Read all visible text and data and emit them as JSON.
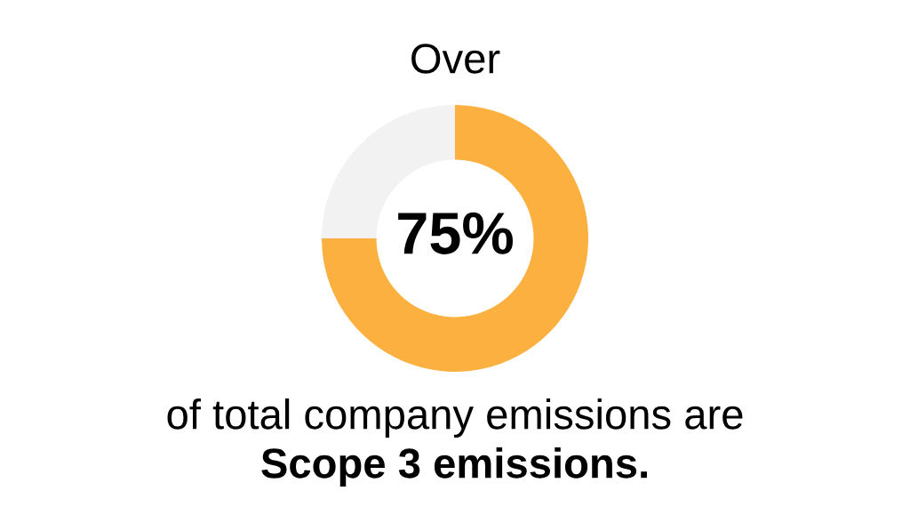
{
  "chart_data": {
    "type": "donut",
    "title": "Over",
    "categories": [
      null,
      null
    ],
    "values": [
      75,
      25
    ],
    "colors": [
      "#fbb03f",
      "#f2f2f2"
    ],
    "value_labels": [
      "75%",
      null
    ],
    "annotations": [
      "of total company emissions are",
      "Scope 3 emissions."
    ]
  }
}
